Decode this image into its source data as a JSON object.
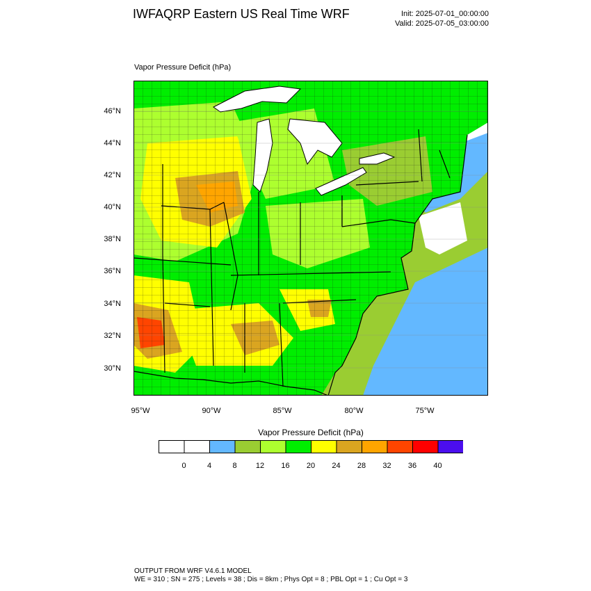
{
  "header": {
    "title": "IWFAQRP Eastern US Real Time WRF",
    "init": "Init: 2025-07-01_00:00:00",
    "valid": "Valid: 2025-07-05_03:00:00"
  },
  "plot": {
    "label": "Vapor Pressure Deficit   (hPa)",
    "lat_labels": [
      "46°N",
      "44°N",
      "42°N",
      "40°N",
      "38°N",
      "36°N",
      "34°N",
      "32°N",
      "30°N"
    ],
    "lon_labels": [
      "95°W",
      "90°W",
      "85°W",
      "80°W",
      "75°W"
    ]
  },
  "colorbar": {
    "title": "Vapor Pressure Deficit  (hPa)",
    "labels": [
      "0",
      "4",
      "8",
      "12",
      "16",
      "20",
      "24",
      "28",
      "32",
      "36",
      "40"
    ],
    "colors": [
      "#ffffff",
      "#ffffff",
      "#63b8ff",
      "#9acd32",
      "#adff2f",
      "#00ee00",
      "#ffff00",
      "#daa520",
      "#ffa500",
      "#ff4500",
      "#ff0000",
      "#4b0eee"
    ]
  },
  "footer": {
    "line1": "OUTPUT FROM WRF V4.6.1 MODEL",
    "line2": "WE = 310 ; SN = 275 ; Levels = 38 ; Dis = 8km ; Phys Opt = 8 ; PBL Opt = 1 ; Cu Opt = 3"
  }
}
